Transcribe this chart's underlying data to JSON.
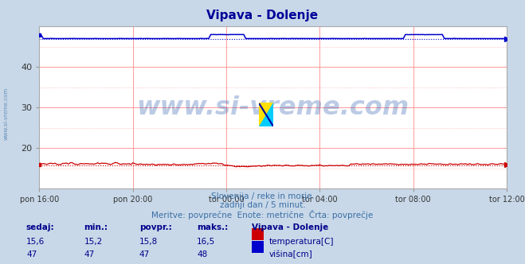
{
  "title": "Vipava - Dolenje",
  "bg_color": "#c8d8e8",
  "plot_bg_color": "#ffffff",
  "grid_color": "#ff9999",
  "grid_minor_color": "#ffcccc",
  "xlabel_ticks": [
    "pon 16:00",
    "pon 20:00",
    "tor 00:00",
    "tor 04:00",
    "tor 08:00",
    "tor 12:00"
  ],
  "x_tick_positions": [
    0,
    48,
    96,
    144,
    192,
    240
  ],
  "n_points": 241,
  "ylim": [
    10,
    50
  ],
  "yticks": [
    20,
    30,
    40
  ],
  "temp_color": "#cc0000",
  "height_color": "#0000cc",
  "watermark_text": "www.si-vreme.com",
  "watermark_color": "#2255aa",
  "watermark_alpha": 0.3,
  "sub_text1": "Slovenija / reke in morje.",
  "sub_text2": "zadnji dan / 5 minut.",
  "sub_text3": "Meritve: povprečne  Enote: metrične  Črta: povprečje",
  "sub_text_color": "#3a6ea5",
  "legend_title": "Vipava - Dolenje",
  "table_color": "#00008b",
  "table_header": [
    "sedaj:",
    "min.:",
    "povpr.:",
    "maks.:"
  ],
  "temp_row": [
    "15,6",
    "15,2",
    "15,8",
    "16,5"
  ],
  "height_row": [
    "47",
    "47",
    "47",
    "48"
  ],
  "temp_label": "temperatura[C]",
  "height_label": "višina[cm]",
  "left_label": "www.si-vreme.com",
  "left_label_color": "#3a6ea5",
  "title_color": "#000099",
  "tick_color": "#333333"
}
